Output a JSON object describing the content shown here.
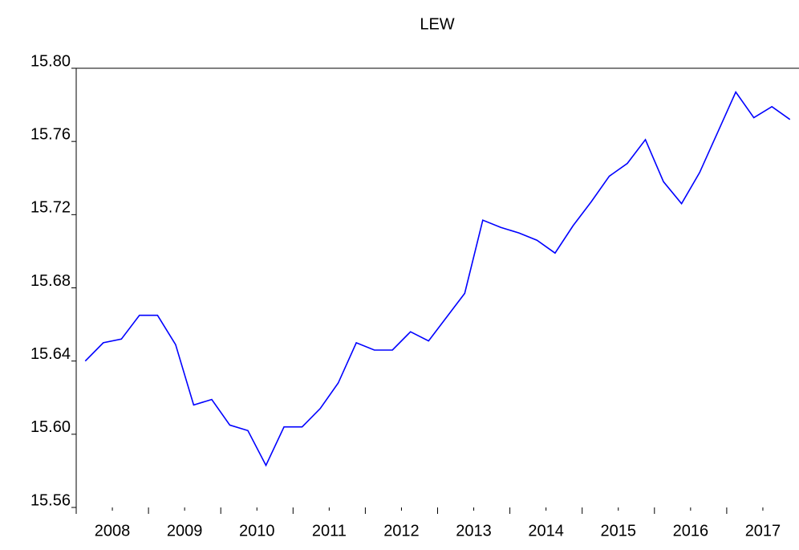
{
  "chart_data": {
    "type": "line",
    "title": "LEW",
    "categories": [
      "2008",
      null,
      null,
      null,
      "2009",
      null,
      null,
      null,
      "2010",
      null,
      null,
      null,
      "2011",
      null,
      null,
      null,
      "2012",
      null,
      null,
      null,
      "2013",
      null,
      null,
      null,
      "2014",
      null,
      null,
      null,
      "2015",
      null,
      null,
      null,
      "2016",
      null,
      null,
      null,
      "2017",
      null,
      null,
      null
    ],
    "series": [
      {
        "name": "LEW",
        "color": "#0000ff",
        "values": [
          15.64,
          15.65,
          15.652,
          15.665,
          15.665,
          15.649,
          15.616,
          15.619,
          15.605,
          15.602,
          15.583,
          15.604,
          15.604,
          15.614,
          15.628,
          15.65,
          15.646,
          15.646,
          15.656,
          15.651,
          15.664,
          15.677,
          15.717,
          15.713,
          15.71,
          15.706,
          15.699,
          15.714,
          15.727,
          15.741,
          15.748,
          15.761,
          15.738,
          15.726,
          15.743,
          15.765,
          15.787,
          15.773,
          15.779,
          15.772
        ]
      }
    ],
    "ylim": [
      15.56,
      15.8
    ],
    "yticks": [
      {
        "value": 15.56,
        "label": "15.56"
      },
      {
        "value": 15.6,
        "label": "15.60"
      },
      {
        "value": 15.64,
        "label": "15.64"
      },
      {
        "value": 15.68,
        "label": "15.68"
      },
      {
        "value": 15.72,
        "label": "15.72"
      },
      {
        "value": 15.76,
        "label": "15.76"
      },
      {
        "value": 15.8,
        "label": "15.80"
      }
    ],
    "grid": false
  }
}
